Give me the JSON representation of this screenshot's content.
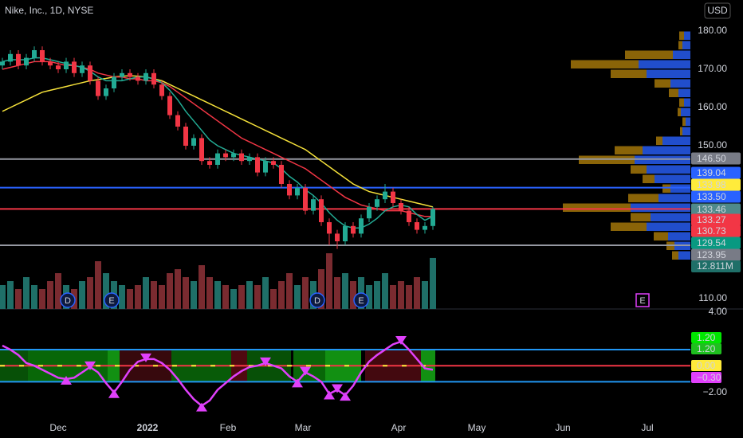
{
  "header": {
    "title": "Nike, Inc., 1D, NYSE",
    "currency": "USD"
  },
  "chart_data": [
    {
      "type": "candlestick",
      "x": [
        0,
        1,
        2,
        3,
        4,
        5,
        6,
        7,
        8,
        9,
        10,
        11,
        12,
        13,
        14,
        15,
        16,
        17,
        18,
        19,
        20,
        21,
        22,
        23,
        24,
        25,
        26,
        27,
        28,
        29,
        30,
        31,
        32,
        33,
        34,
        35,
        36,
        37,
        38,
        39,
        40,
        41,
        42,
        43,
        44,
        45,
        46,
        47,
        48,
        49,
        50,
        51,
        52,
        53,
        54
      ],
      "open": [
        171,
        172,
        174,
        171,
        173,
        175,
        172,
        171,
        170,
        172,
        169,
        171,
        167,
        163,
        165,
        168,
        169,
        168,
        167,
        169,
        166,
        163,
        158,
        155,
        150,
        152,
        146,
        145,
        148,
        147,
        148,
        146,
        147,
        143,
        146,
        145,
        140,
        137,
        139,
        133,
        136,
        130,
        127,
        125,
        129,
        127,
        131,
        134,
        136,
        138,
        135,
        133,
        130,
        128,
        129
      ],
      "high": [
        173,
        175,
        175,
        174,
        176,
        176,
        173,
        172,
        173,
        173,
        172,
        172,
        168,
        166,
        169,
        170,
        170,
        169,
        170,
        170,
        167,
        164,
        159,
        156,
        153,
        153,
        147,
        149,
        149,
        149,
        149,
        148,
        148,
        147,
        147,
        146,
        141,
        140,
        140,
        137,
        137,
        131,
        128,
        130,
        130,
        132,
        135,
        137,
        140,
        139,
        136,
        134,
        131,
        130,
        134
      ],
      "low": [
        170,
        171,
        170,
        170,
        172,
        171,
        170,
        169,
        169,
        168,
        168,
        166,
        162,
        162,
        164,
        167,
        167,
        166,
        166,
        165,
        162,
        157,
        154,
        149,
        149,
        145,
        144,
        144,
        146,
        146,
        145,
        145,
        142,
        142,
        144,
        139,
        136,
        136,
        132,
        132,
        129,
        124,
        123,
        124,
        126,
        126,
        130,
        133,
        135,
        134,
        132,
        129,
        127,
        127,
        128
      ],
      "close": [
        172,
        174,
        171,
        173,
        175,
        172,
        171,
        170,
        172,
        169,
        171,
        167,
        163,
        165,
        168,
        169,
        168,
        167,
        169,
        166,
        163,
        158,
        155,
        150,
        152,
        146,
        145,
        148,
        147,
        148,
        146,
        147,
        143,
        146,
        145,
        140,
        137,
        139,
        133,
        136,
        130,
        127,
        125,
        129,
        127,
        131,
        134,
        136,
        138,
        135,
        133,
        130,
        128,
        129,
        133.46
      ],
      "series": [
        {
          "color": "#f5e13a",
          "values": [
            159,
            160,
            161,
            162,
            163,
            164,
            164.5,
            165,
            165.5,
            166,
            166.5,
            167,
            167.3,
            167.6,
            168,
            168.2,
            168.3,
            168.2,
            168,
            167.5,
            167,
            166,
            165,
            164,
            163,
            162,
            161,
            160,
            159,
            158,
            157,
            156,
            155,
            154,
            153,
            152,
            151,
            150,
            149,
            147.5,
            146,
            144.5,
            143,
            141.5,
            140,
            139,
            138,
            137.5,
            137,
            136.5,
            136,
            135.5,
            135,
            134.5,
            134
          ]
        },
        {
          "color": "#f23645",
          "values": [
            170,
            170.5,
            171,
            171.5,
            172,
            172,
            172,
            171.5,
            171,
            171,
            170.5,
            170,
            169,
            168.5,
            168,
            168,
            167.5,
            167.5,
            167,
            167,
            166.5,
            165.5,
            164,
            162.5,
            161,
            159.5,
            158,
            156.5,
            155,
            153.5,
            152,
            151,
            150,
            149,
            148,
            147,
            146,
            145,
            144,
            142.5,
            141,
            139.5,
            138,
            136.5,
            135.5,
            134.5,
            134,
            133.5,
            133,
            133,
            133,
            132.5,
            132,
            131.5,
            131.5
          ]
        },
        {
          "color": "#22ab94",
          "values": [
            172,
            172.5,
            172.5,
            172.5,
            173,
            173,
            172.5,
            172,
            171.5,
            171,
            170.5,
            169.5,
            168,
            167,
            167,
            167,
            167.5,
            168,
            168,
            167.5,
            166.5,
            164.5,
            162,
            159,
            156.5,
            154,
            151.5,
            150,
            149,
            148,
            147.5,
            147,
            146.5,
            146,
            145.5,
            144,
            142,
            140.5,
            138.5,
            137,
            135,
            132.5,
            130.5,
            129,
            128.5,
            128.5,
            129.5,
            131,
            133,
            134,
            134.5,
            134,
            132,
            130.5,
            131.5
          ]
        }
      ],
      "volume": [
        6,
        7,
        5,
        8,
        6,
        5,
        7,
        9,
        6,
        5,
        7,
        8,
        12,
        9,
        7,
        6,
        5,
        6,
        8,
        7,
        6,
        9,
        10,
        8,
        7,
        11,
        8,
        7,
        6,
        5,
        6,
        7,
        6,
        8,
        5,
        7,
        9,
        6,
        8,
        7,
        10,
        14,
        8,
        9,
        7,
        8,
        6,
        7,
        9,
        6,
        7,
        6,
        8,
        7,
        12.811
      ],
      "volume_label": {
        "value": 12.811,
        "label": "12.811M"
      },
      "hlines": [
        {
          "value": 146.5,
          "color": "#9598a1"
        },
        {
          "value": 139.04,
          "color": "#2962ff"
        },
        {
          "value": 133.46,
          "color": "#f23645"
        },
        {
          "value": 123.95,
          "color": "#9598a1"
        }
      ],
      "price_labels": [
        {
          "value": 146.5,
          "label": "146.50",
          "color": "#787b86",
          "text_color": "#ffffff"
        },
        {
          "value": 139.04,
          "label": "139.04",
          "color": "#2962ff",
          "text_color": "#ffffff"
        },
        {
          "value": 133.98,
          "label": "133.98",
          "color": "#ffeb3b",
          "text_color": "#000000"
        },
        {
          "value": 133.5,
          "label": "133.50",
          "color": "#2962ff",
          "text_color": "#ffffff"
        },
        {
          "value": 133.46,
          "label": "133.46",
          "color": "#4f8a8b",
          "text_color": "#ffffff"
        },
        {
          "value": 133.27,
          "label": "133.27",
          "color": "#f23645",
          "text_color": "#ffffff"
        },
        {
          "value": 130.73,
          "label": "130.73",
          "color": "#f23645",
          "text_color": "#ffffff"
        },
        {
          "value": 129.54,
          "label": "129.54",
          "color": "#089981",
          "text_color": "#ffffff"
        },
        {
          "value": 123.95,
          "label": "123.95",
          "color": "#787b86",
          "text_color": "#ffffff"
        }
      ],
      "ylim": [
        107.29,
        188.125
      ],
      "yticks": [
        {
          "value": 180,
          "label": "180.00"
        },
        {
          "value": 170,
          "label": "170.00"
        },
        {
          "value": 160,
          "label": "160.00"
        },
        {
          "value": 150,
          "label": "150.00"
        },
        {
          "value": 110,
          "label": "110.00"
        }
      ],
      "xlim": [
        -0.3,
        86.3
      ],
      "xticks": [
        {
          "value": 7,
          "label": "Dec"
        },
        {
          "value": 18.2,
          "label": "2022"
        },
        {
          "value": 28.3,
          "label": "Feb"
        },
        {
          "value": 37.7,
          "label": "Mar"
        },
        {
          "value": 49.7,
          "label": "Apr"
        },
        {
          "value": 59.5,
          "label": "May"
        },
        {
          "value": 70.3,
          "label": "Jun"
        },
        {
          "value": 80.9,
          "label": "Jul"
        }
      ],
      "events": [
        {
          "x": 8.2,
          "label": "D"
        },
        {
          "x": 13.7,
          "label": "E"
        },
        {
          "x": 39.5,
          "label": "D"
        },
        {
          "x": 45,
          "label": "E"
        },
        {
          "x": 80.3,
          "label": "E"
        }
      ],
      "volume_profile": {
        "levels": [
          178.75,
          176.25,
          173.75,
          171.25,
          168.75,
          166.25,
          163.75,
          161.25,
          158.75,
          156.25,
          153.75,
          151.25,
          148.75,
          146.25,
          143.75,
          141.25,
          138.75,
          136.25,
          133.75,
          131.25,
          128.75,
          126.25,
          123.75,
          121.25
        ],
        "up": [
          8,
          10,
          22,
          65,
          55,
          25,
          15,
          8,
          12,
          6,
          10,
          35,
          60,
          70,
          55,
          45,
          25,
          40,
          75,
          50,
          55,
          28,
          20,
          15
        ],
        "down": [
          6,
          5,
          60,
          85,
          45,
          20,
          12,
          6,
          4,
          4,
          3,
          8,
          35,
          70,
          20,
          15,
          10,
          38,
          85,
          25,
          45,
          18,
          10,
          8
        ]
      }
    },
    {
      "type": "line",
      "x": [
        0,
        1,
        2,
        3,
        4,
        5,
        6,
        7,
        8,
        9,
        10,
        11,
        12,
        13,
        14,
        15,
        16,
        17,
        18,
        19,
        20,
        21,
        22,
        23,
        24,
        25,
        26,
        27,
        28,
        29,
        30,
        31,
        32,
        33,
        34,
        35,
        36,
        37,
        38,
        39,
        40,
        41,
        42,
        43,
        44,
        45,
        46,
        47,
        48,
        49,
        50,
        51,
        52,
        53,
        54
      ],
      "series": [
        {
          "color": "#e040fb",
          "values": [
            1.5,
            1.2,
            0.8,
            0.2,
            0,
            -0.3,
            -0.6,
            -0.9,
            -1.0,
            -0.9,
            -0.5,
            -0.1,
            -0.5,
            -1.3,
            -2.0,
            -1.2,
            -0.3,
            0.3,
            0.5,
            0.5,
            0.2,
            -0.3,
            -1.0,
            -1.8,
            -2.5,
            -3.0,
            -2.6,
            -1.8,
            -1.3,
            -0.8,
            -0.4,
            -0.1,
            0,
            0.2,
            0,
            -0.2,
            -0.8,
            -1.2,
            -0.5,
            -0.8,
            -1.2,
            -2.1,
            -1.8,
            -2.2,
            -1.5,
            -0.5,
            0.3,
            0.8,
            1.2,
            1.6,
            1.8,
            1.2,
            0.5,
            -0.2,
            -0.3
          ]
        }
      ],
      "ylim": [
        -3.5,
        4.24
      ],
      "yticks": [
        {
          "value": 4,
          "label": "4.00"
        },
        {
          "value": -2,
          "label": "−2.00"
        }
      ],
      "hlines": [
        {
          "value": 1.2,
          "color": "#2196f3"
        },
        {
          "value": -1.2,
          "color": "#2196f3"
        },
        {
          "value": 0,
          "color": "#f23645"
        }
      ],
      "labels": [
        {
          "value": 1.2,
          "label": "1.20",
          "color": "#00e600",
          "text_color": "#000000"
        },
        {
          "value": 1.2,
          "label": "1.20",
          "color": "#1fbf1f",
          "text_color": "#000000"
        },
        {
          "value": 0,
          "label": "0.00",
          "color": "#ffeb3b",
          "text_color": "#000000"
        },
        {
          "value": -0.3,
          "label": "−0.30",
          "color": "#e040fb",
          "text_color": "#ffffff"
        }
      ]
    }
  ]
}
